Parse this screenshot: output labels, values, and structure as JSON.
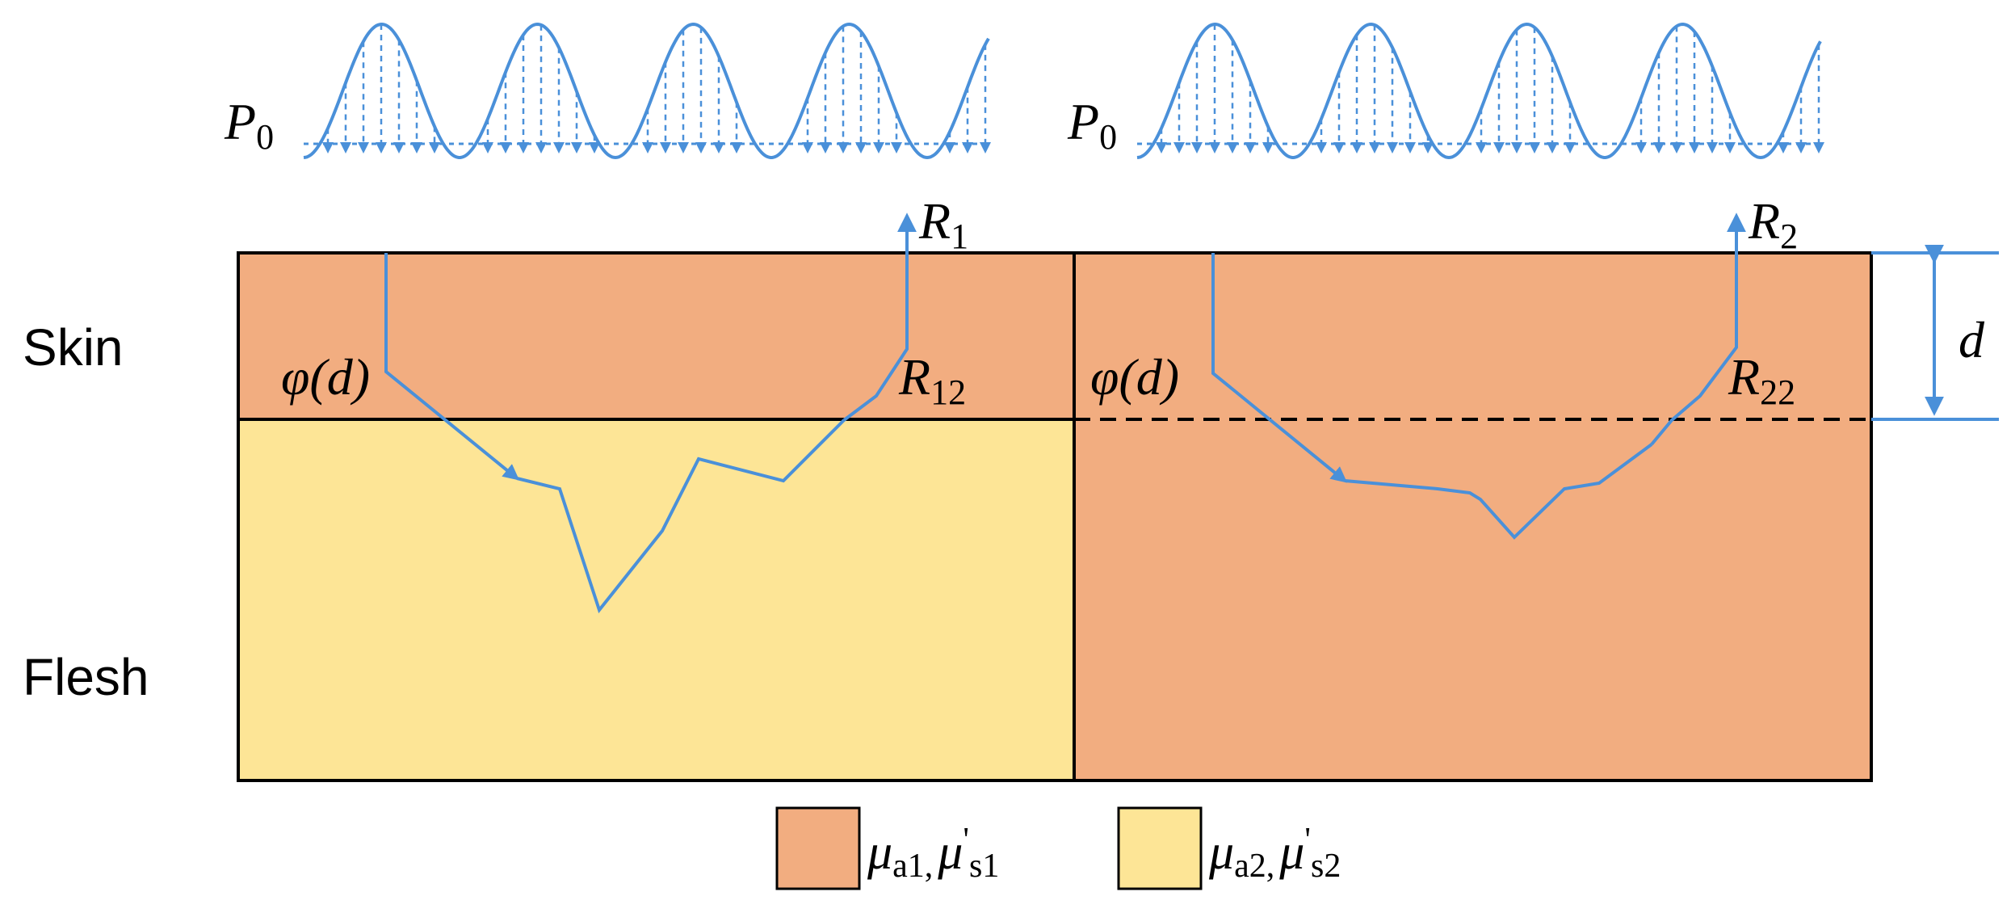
{
  "labels": {
    "skin": "Skin",
    "flesh": "Flesh"
  },
  "left_panel": {
    "source": {
      "main": "P",
      "sub": "0"
    },
    "exit": {
      "main": "R",
      "sub": "1"
    },
    "interface_exit": {
      "main": "R",
      "sub": "12"
    },
    "fluence": "φ(d)"
  },
  "right_panel": {
    "source": {
      "main": "P",
      "sub": "0"
    },
    "exit": {
      "main": "R",
      "sub": "2"
    },
    "interface_exit": {
      "main": "R",
      "sub": "22"
    },
    "fluence": "φ(d)"
  },
  "depth_label": "d",
  "legend": [
    {
      "color": "#f2ad80",
      "symbol1": "μ",
      "sub1": "a1,",
      "symbol2": "μ",
      "prime": "'",
      "sub2": "s1"
    },
    {
      "color": "#fde596",
      "symbol1": "μ",
      "sub1": "a2,",
      "symbol2": "μ",
      "prime": "'",
      "sub2": "s2"
    }
  ],
  "colors": {
    "skin": "#f2ad80",
    "flesh_left": "#fde596",
    "flesh_right": "#f2ad80",
    "light": "#4a90d9",
    "border": "#000000"
  },
  "arrow_icons": [
    "arrow-up-icon",
    "arrow-down-icon"
  ]
}
